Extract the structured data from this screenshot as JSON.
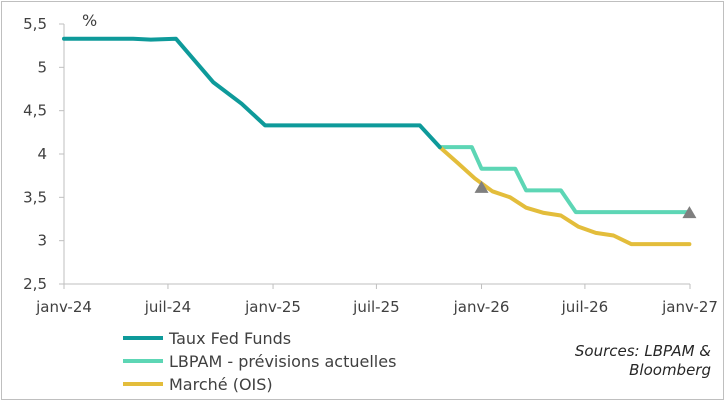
{
  "chart_data": {
    "type": "line",
    "title": "",
    "xlabel": "",
    "ylabel": "%",
    "ylim": [
      2.5,
      5.5
    ],
    "yticks": [
      "5,5",
      "5",
      "4,5",
      "4",
      "3,5",
      "3",
      "2,5"
    ],
    "ytick_values": [
      5.5,
      5,
      4.5,
      4,
      3.5,
      3,
      2.5
    ],
    "xticks": [
      "janv-24",
      "juil-24",
      "janv-25",
      "juil-25",
      "janv-26",
      "juil-26",
      "janv-27"
    ],
    "xtick_values": [
      "2024-01-01",
      "2024-07-01",
      "2025-01-01",
      "2025-07-01",
      "2026-01-01",
      "2026-07-01",
      "2027-01-01"
    ],
    "xlim": [
      "2024-01-01",
      "2027-01-01"
    ],
    "grid": false,
    "legend_position": "bottom-left",
    "series": [
      {
        "name": "Taux Fed Funds",
        "color": "#0e9a9a",
        "points": [
          [
            "2024-01-01",
            5.33
          ],
          [
            "2024-02-15",
            5.33
          ],
          [
            "2024-05-01",
            5.33
          ],
          [
            "2024-06-01",
            5.32
          ],
          [
            "2024-07-15",
            5.33
          ],
          [
            "2024-09-18",
            4.83
          ],
          [
            "2024-11-07",
            4.58
          ],
          [
            "2024-12-18",
            4.33
          ],
          [
            "2025-01-15",
            4.33
          ],
          [
            "2025-09-15",
            4.33
          ],
          [
            "2025-10-20",
            4.08
          ]
        ]
      },
      {
        "name": "LBPAM - prévisions actuelles",
        "color": "#5dd6b5",
        "points": [
          [
            "2025-10-20",
            4.08
          ],
          [
            "2025-12-15",
            4.08
          ],
          [
            "2026-01-01",
            3.83
          ],
          [
            "2026-03-01",
            3.83
          ],
          [
            "2026-03-20",
            3.58
          ],
          [
            "2026-05-20",
            3.58
          ],
          [
            "2026-06-15",
            3.33
          ],
          [
            "2026-12-31",
            3.33
          ]
        ]
      },
      {
        "name": "Marché (OIS)",
        "color": "#e3bd3b",
        "points": [
          [
            "2025-10-20",
            4.08
          ],
          [
            "2025-11-20",
            3.9
          ],
          [
            "2025-12-20",
            3.72
          ],
          [
            "2026-01-20",
            3.57
          ],
          [
            "2026-02-20",
            3.5
          ],
          [
            "2026-03-20",
            3.38
          ],
          [
            "2026-04-20",
            3.32
          ],
          [
            "2026-05-20",
            3.29
          ],
          [
            "2026-06-20",
            3.16
          ],
          [
            "2026-07-20",
            3.09
          ],
          [
            "2026-08-20",
            3.06
          ],
          [
            "2026-09-20",
            2.96
          ],
          [
            "2026-12-31",
            2.96
          ]
        ]
      }
    ],
    "markers": [
      {
        "x": "2026-01-01",
        "y": 3.62,
        "color": "#7f7f7f"
      },
      {
        "x": "2026-12-31",
        "y": 3.33,
        "color": "#7f7f7f"
      }
    ]
  },
  "source_lines": [
    "Sources: LBPAM &",
    "Bloomberg"
  ]
}
